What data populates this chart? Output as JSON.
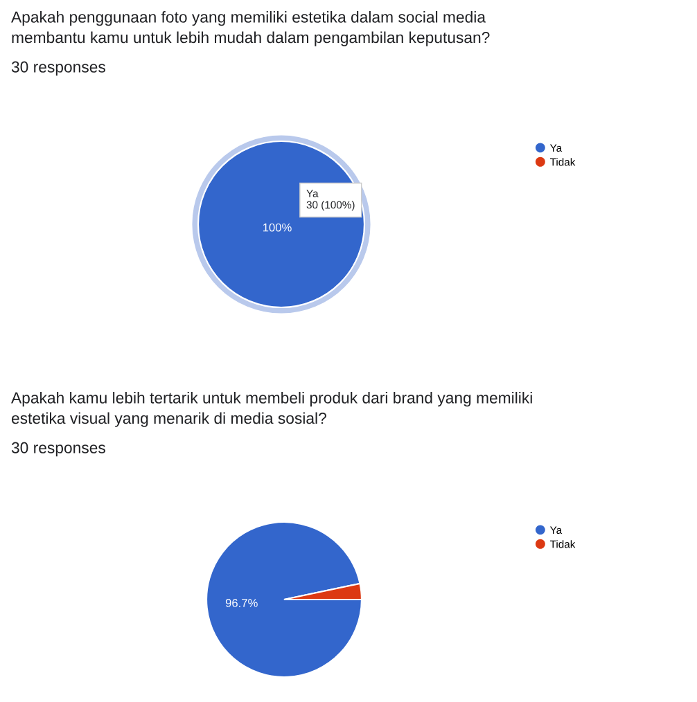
{
  "chart_data": [
    {
      "type": "pie",
      "title": "Apakah penggunaan foto yang memiliki estetika dalam social media\nmembantu kamu untuk lebih mudah dalam pengambilan keputusan?",
      "subtitle": "30 responses",
      "categories": [
        "Ya",
        "Tidak"
      ],
      "values": [
        100,
        0
      ],
      "colors": [
        "#3366cc",
        "#dc3912"
      ],
      "value_labels": [
        "100%",
        null
      ],
      "annotations": [
        "Ya\n30 (100%)"
      ],
      "legend": "top right"
    },
    {
      "type": "pie",
      "title": "Apakah kamu lebih tertarik untuk membeli produk dari brand yang memiliki\nestetika visual yang menarik di media sosial?",
      "subtitle": "30 responses",
      "categories": [
        "Ya",
        "Tidak"
      ],
      "values": [
        96.7,
        3.3
      ],
      "colors": [
        "#3366cc",
        "#dc3912"
      ],
      "value_labels": [
        "96.7%",
        null
      ],
      "legend": "top right"
    }
  ]
}
